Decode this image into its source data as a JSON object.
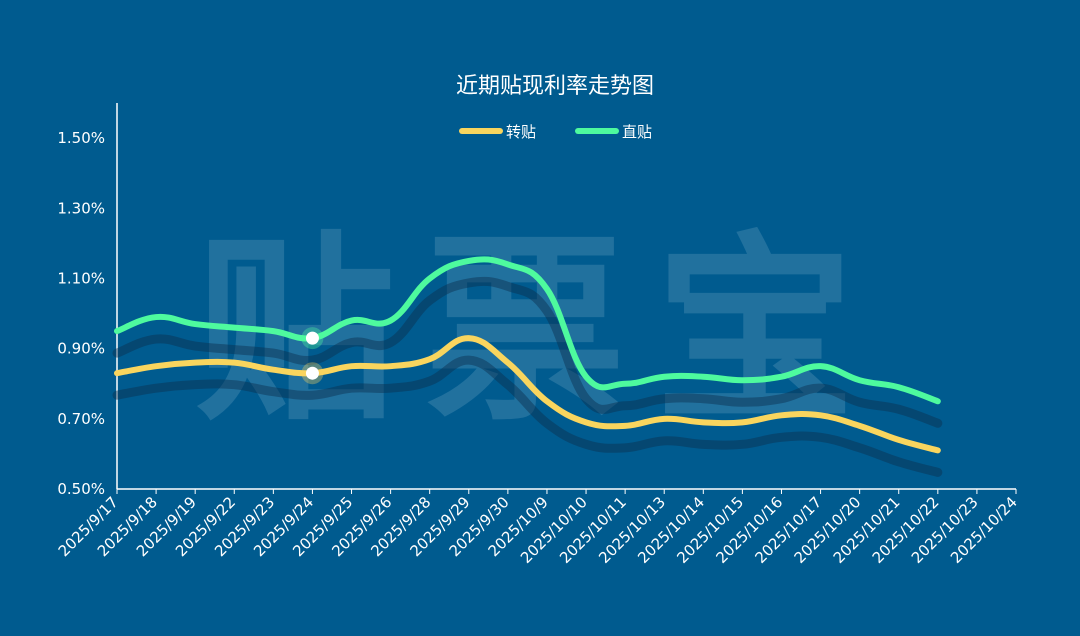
{
  "chart_data": {
    "type": "line",
    "title": "近期贴现利率走势图",
    "watermark": "贴票宝",
    "xlabel": "",
    "ylabel": "",
    "categories": [
      "2025/9/17",
      "2025/9/18",
      "2025/9/19",
      "2025/9/22",
      "2025/9/23",
      "2025/9/24",
      "2025/9/25",
      "2025/9/26",
      "2025/9/28",
      "2025/9/29",
      "2025/9/30",
      "2025/10/9",
      "2025/10/10",
      "2025/10/11",
      "2025/10/13",
      "2025/10/14",
      "2025/10/15",
      "2025/10/16",
      "2025/10/17",
      "2025/10/20",
      "2025/10/21",
      "2025/10/22",
      "2025/10/23",
      "2025/10/24"
    ],
    "y_ticks": [
      "0.50%",
      "0.70%",
      "0.90%",
      "1.10%",
      "1.30%",
      "1.50%"
    ],
    "ylim": [
      0.5,
      1.6
    ],
    "legend_position": "top-center",
    "grid": false,
    "highlight_index": 5,
    "series": [
      {
        "name": "转贴",
        "color": "#f9d55e",
        "values": [
          0.83,
          0.85,
          0.86,
          0.86,
          0.84,
          0.83,
          0.85,
          0.85,
          0.87,
          0.93,
          0.86,
          0.75,
          0.69,
          0.68,
          0.7,
          0.69,
          0.69,
          0.71,
          0.71,
          0.68,
          0.64,
          0.61,
          null,
          null
        ]
      },
      {
        "name": "直贴",
        "color": "#4efa9e",
        "values": [
          0.95,
          0.99,
          0.97,
          0.96,
          0.95,
          0.93,
          0.98,
          0.98,
          1.1,
          1.15,
          1.14,
          1.07,
          0.82,
          0.8,
          0.82,
          0.82,
          0.81,
          0.82,
          0.85,
          0.81,
          0.79,
          0.75,
          null,
          null
        ]
      }
    ]
  }
}
